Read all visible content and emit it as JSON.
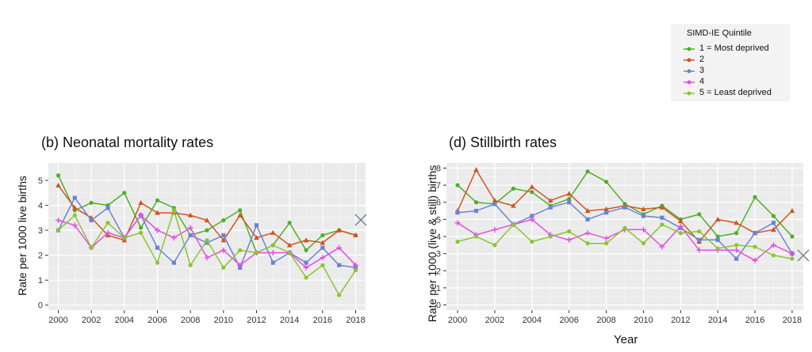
{
  "legend": {
    "title": "SIMD-IE Quintile",
    "entries": [
      {
        "label": "1 = Most deprived",
        "color": "#4caf2a"
      },
      {
        "label": "2",
        "color": "#d2541e"
      },
      {
        "label": "3",
        "color": "#6b83d6"
      },
      {
        "label": "4",
        "color": "#e34fe0"
      },
      {
        "label": "5 = Least deprived",
        "color": "#8cc432"
      }
    ]
  },
  "chart_data": [
    {
      "type": "line",
      "title": "(b) Neonatal mortality rates",
      "xlabel": "",
      "ylabel": "Rate per 1000 live births",
      "x": [
        2000,
        2001,
        2002,
        2003,
        2004,
        2005,
        2006,
        2007,
        2008,
        2009,
        2010,
        2011,
        2012,
        2013,
        2014,
        2015,
        2016,
        2017,
        2018
      ],
      "xticks": [
        2000,
        2002,
        2004,
        2006,
        2008,
        2010,
        2012,
        2014,
        2016,
        2018
      ],
      "yticks": [
        0,
        1,
        2,
        3,
        4,
        5
      ],
      "ylim": [
        -0.2,
        5.7
      ],
      "xlim": [
        1999.4,
        2018.6
      ],
      "grid": true,
      "legend": "top-right",
      "series": [
        {
          "name": "1 = Most deprived",
          "color": "#4caf2a",
          "marker": "circle",
          "values": [
            5.2,
            3.8,
            4.1,
            4.0,
            4.5,
            3.1,
            4.2,
            3.9,
            2.8,
            3.0,
            3.4,
            3.8,
            2.1,
            2.4,
            3.3,
            2.2,
            2.8,
            3.0,
            2.8
          ]
        },
        {
          "name": "2",
          "color": "#d2541e",
          "marker": "triangle",
          "values": [
            4.8,
            3.9,
            3.5,
            2.8,
            2.6,
            4.1,
            3.7,
            3.7,
            3.6,
            3.4,
            2.6,
            3.6,
            2.7,
            2.9,
            2.4,
            2.6,
            2.5,
            3.0,
            2.8
          ]
        },
        {
          "name": "3",
          "color": "#6b83d6",
          "marker": "square",
          "values": [
            3.0,
            4.3,
            3.4,
            3.9,
            2.7,
            3.6,
            2.3,
            1.7,
            2.8,
            2.5,
            2.8,
            1.5,
            3.2,
            1.7,
            2.1,
            1.7,
            2.3,
            1.6,
            1.5
          ]
        },
        {
          "name": "4",
          "color": "#e34fe0",
          "marker": "plus",
          "values": [
            3.4,
            3.2,
            2.3,
            2.9,
            2.7,
            3.6,
            3.0,
            2.7,
            3.1,
            1.9,
            2.2,
            1.6,
            2.1,
            2.1,
            2.1,
            1.5,
            1.9,
            2.3,
            1.6
          ]
        },
        {
          "name": "5 = Least deprived",
          "color": "#8cc432",
          "marker": "circle",
          "values": [
            3.0,
            3.6,
            2.3,
            3.3,
            2.7,
            2.9,
            1.7,
            3.8,
            1.6,
            2.6,
            1.5,
            2.2,
            2.1,
            2.4,
            2.1,
            1.1,
            1.6,
            0.4,
            1.4
          ]
        }
      ]
    },
    {
      "type": "line",
      "title": "(d) Stillbirth rates",
      "xlabel": "Year",
      "ylabel": "Rate per 1000 (live & still) births",
      "x": [
        2000,
        2001,
        2002,
        2003,
        2004,
        2005,
        2006,
        2007,
        2008,
        2009,
        2010,
        2011,
        2012,
        2013,
        2014,
        2015,
        2016,
        2017,
        2018
      ],
      "xticks": [
        2000,
        2002,
        2004,
        2006,
        2008,
        2010,
        2012,
        2014,
        2016,
        2018
      ],
      "yticks": [
        0,
        1,
        2,
        3,
        4,
        5,
        6,
        7,
        8
      ],
      "ylim": [
        -0.3,
        8.3
      ],
      "xlim": [
        1999.4,
        2018.6
      ],
      "grid": true,
      "series": [
        {
          "name": "1 = Most deprived",
          "color": "#4caf2a",
          "marker": "circle",
          "values": [
            7.0,
            6.0,
            5.9,
            6.8,
            6.6,
            5.8,
            6.2,
            7.8,
            7.2,
            5.9,
            5.3,
            5.8,
            5.0,
            5.3,
            4.0,
            4.2,
            6.3,
            5.2,
            4.0
          ]
        },
        {
          "name": "2",
          "color": "#d2541e",
          "marker": "triangle",
          "values": [
            5.5,
            7.9,
            6.1,
            5.8,
            6.9,
            6.1,
            6.5,
            5.5,
            5.6,
            5.8,
            5.6,
            5.7,
            4.9,
            3.7,
            5.0,
            4.8,
            4.2,
            4.4,
            5.5
          ]
        },
        {
          "name": "3",
          "color": "#6b83d6",
          "marker": "square",
          "values": [
            5.4,
            5.5,
            5.9,
            4.7,
            5.2,
            5.7,
            6.0,
            5.0,
            5.4,
            5.7,
            5.2,
            5.1,
            4.5,
            3.8,
            3.8,
            2.7,
            4.2,
            4.8,
            3.0
          ]
        },
        {
          "name": "4",
          "color": "#e34fe0",
          "marker": "plus",
          "values": [
            4.8,
            4.1,
            4.4,
            4.7,
            5.0,
            4.1,
            3.8,
            4.2,
            3.9,
            4.4,
            4.4,
            3.4,
            4.6,
            3.2,
            3.2,
            3.2,
            2.6,
            3.5,
            3.0
          ]
        },
        {
          "name": "5 = Least deprived",
          "color": "#8cc432",
          "marker": "circle",
          "values": [
            3.7,
            4.0,
            3.5,
            4.7,
            3.7,
            4.0,
            4.3,
            3.6,
            3.6,
            4.5,
            3.6,
            4.7,
            4.2,
            4.3,
            3.3,
            3.5,
            3.4,
            2.9,
            2.7
          ]
        }
      ]
    }
  ]
}
